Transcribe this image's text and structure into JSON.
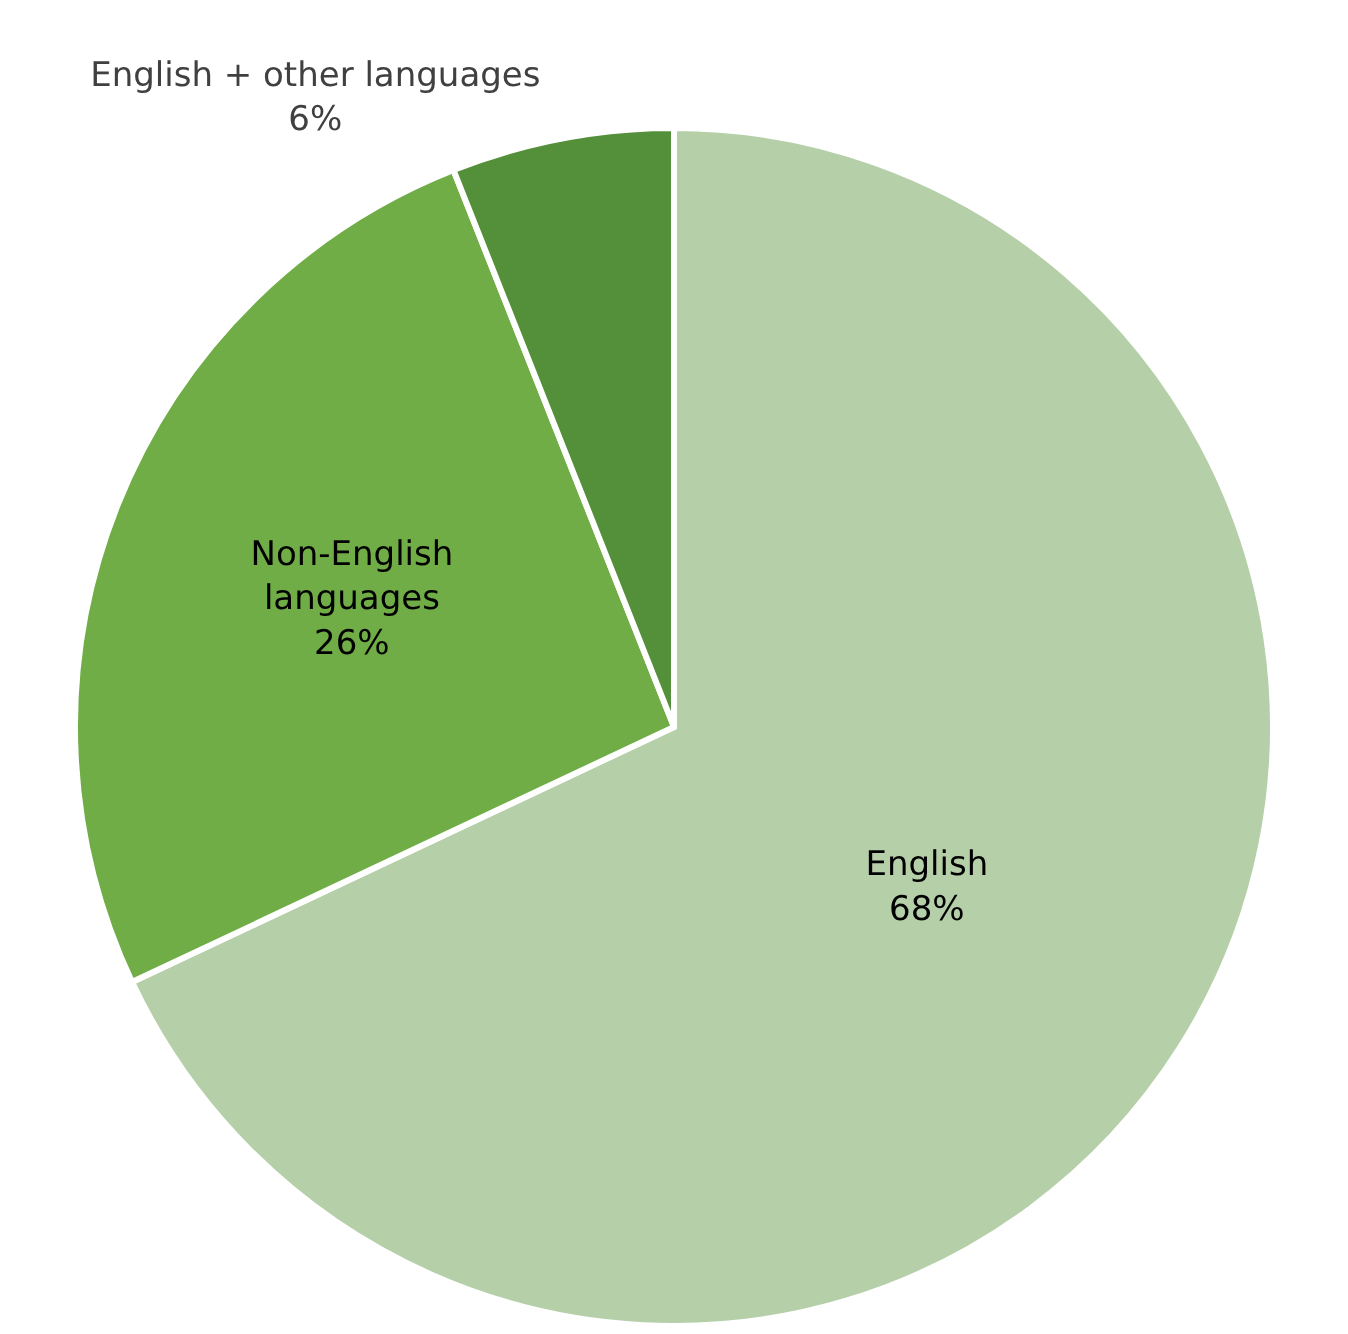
{
  "chart_data": {
    "type": "pie",
    "categories": [
      "English",
      "Non-English languages",
      "English + other languages"
    ],
    "values": [
      68,
      26,
      6
    ],
    "value_labels": [
      "68%",
      "26%",
      "6%"
    ],
    "colors": [
      "#b5cfa8",
      "#70ad47",
      "#548f3a"
    ],
    "legend": false
  }
}
